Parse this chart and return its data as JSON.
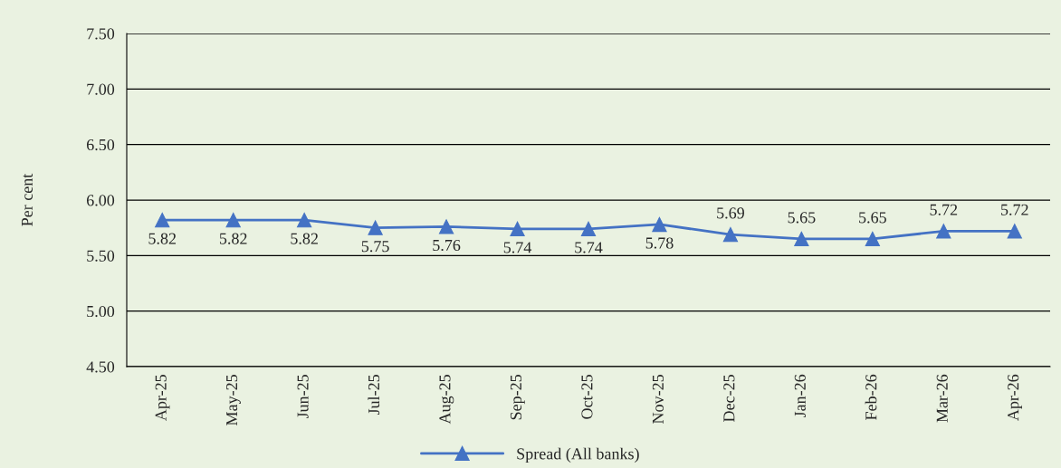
{
  "chart_data": {
    "type": "line",
    "ylabel": "Per cent",
    "categories": [
      "Apr-25",
      "May-25",
      "Jun-25",
      "Jul-25",
      "Aug-25",
      "Sep-25",
      "Oct-25",
      "Nov-25",
      "Dec-25",
      "Jan-26",
      "Feb-26",
      "Mar-26",
      "Apr-26"
    ],
    "series": [
      {
        "name": "Spread (All banks)",
        "color": "#4472c4",
        "values": [
          5.82,
          5.82,
          5.82,
          5.75,
          5.76,
          5.74,
          5.74,
          5.78,
          5.69,
          5.65,
          5.65,
          5.72,
          5.72
        ]
      }
    ],
    "ylim": [
      4.5,
      7.5
    ],
    "yticks": [
      {
        "value": 4.5,
        "label": "4.50"
      },
      {
        "value": 5.0,
        "label": "5.00"
      },
      {
        "value": 5.5,
        "label": "5.50"
      },
      {
        "value": 6.0,
        "label": "6.00"
      },
      {
        "value": 6.5,
        "label": "6.50"
      },
      {
        "value": 7.0,
        "label": "7.00"
      },
      {
        "value": 7.5,
        "label": "7.50"
      }
    ],
    "grid": "y",
    "legend": "bottom",
    "marker": "triangle",
    "line_style": "solid",
    "data_labels": true
  }
}
